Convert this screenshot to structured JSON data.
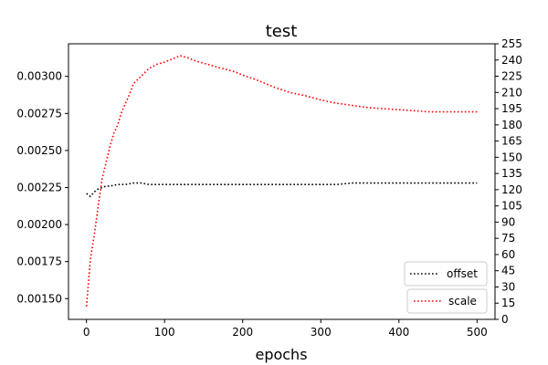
{
  "chart_data": {
    "type": "line",
    "title": "test",
    "xlabel": "epochs",
    "ylabel": "",
    "ylabel_right": "",
    "xlim": [
      -23,
      523
    ],
    "ylim_left": [
      0.00136,
      0.00322
    ],
    "ylim_right": [
      0,
      255
    ],
    "x_ticks": [
      0,
      100,
      200,
      300,
      400,
      500
    ],
    "y_left_ticks": [
      "0.00150",
      "0.00175",
      "0.00200",
      "0.00225",
      "0.00250",
      "0.00275",
      "0.00300"
    ],
    "y_right_ticks": [
      0,
      15,
      30,
      45,
      60,
      75,
      90,
      105,
      120,
      135,
      150,
      165,
      180,
      195,
      210,
      225,
      240,
      255
    ],
    "grid": false,
    "series": [
      {
        "name": "offset",
        "axis": "left",
        "color": "#000000",
        "style": "dotted",
        "legend_position": "lower-right",
        "x": [
          0,
          5,
          10,
          15,
          20,
          25,
          30,
          40,
          50,
          60,
          70,
          80,
          90,
          100,
          120,
          140,
          160,
          180,
          200,
          220,
          240,
          260,
          280,
          300,
          320,
          340,
          360,
          380,
          400,
          420,
          440,
          460,
          480,
          500
        ],
        "y": [
          0.00221,
          0.00219,
          0.00222,
          0.00224,
          0.00225,
          0.00226,
          0.00226,
          0.00227,
          0.00227,
          0.00228,
          0.00228,
          0.00227,
          0.00227,
          0.00227,
          0.00227,
          0.00227,
          0.00227,
          0.00227,
          0.00227,
          0.00227,
          0.00227,
          0.00227,
          0.00227,
          0.00227,
          0.00227,
          0.00228,
          0.00228,
          0.00228,
          0.00228,
          0.00228,
          0.00228,
          0.00228,
          0.00228,
          0.00228
        ]
      },
      {
        "name": "scale",
        "axis": "right",
        "color": "#ff0000",
        "style": "dotted",
        "legend_position": "lower-right",
        "x": [
          0,
          5,
          10,
          15,
          20,
          25,
          30,
          35,
          40,
          45,
          50,
          55,
          60,
          70,
          80,
          90,
          100,
          110,
          120,
          130,
          140,
          150,
          160,
          170,
          180,
          190,
          200,
          220,
          240,
          260,
          280,
          300,
          320,
          340,
          360,
          380,
          400,
          420,
          440,
          460,
          480,
          500
        ],
        "y": [
          12,
          55,
          78,
          105,
          130,
          145,
          160,
          172,
          180,
          192,
          200,
          208,
          218,
          225,
          232,
          236,
          238,
          241,
          244,
          242,
          239,
          237,
          235,
          233,
          231,
          229,
          226,
          221,
          215,
          210,
          207,
          203,
          200,
          198,
          196,
          195,
          194,
          193,
          192,
          192,
          192,
          192
        ]
      }
    ]
  }
}
